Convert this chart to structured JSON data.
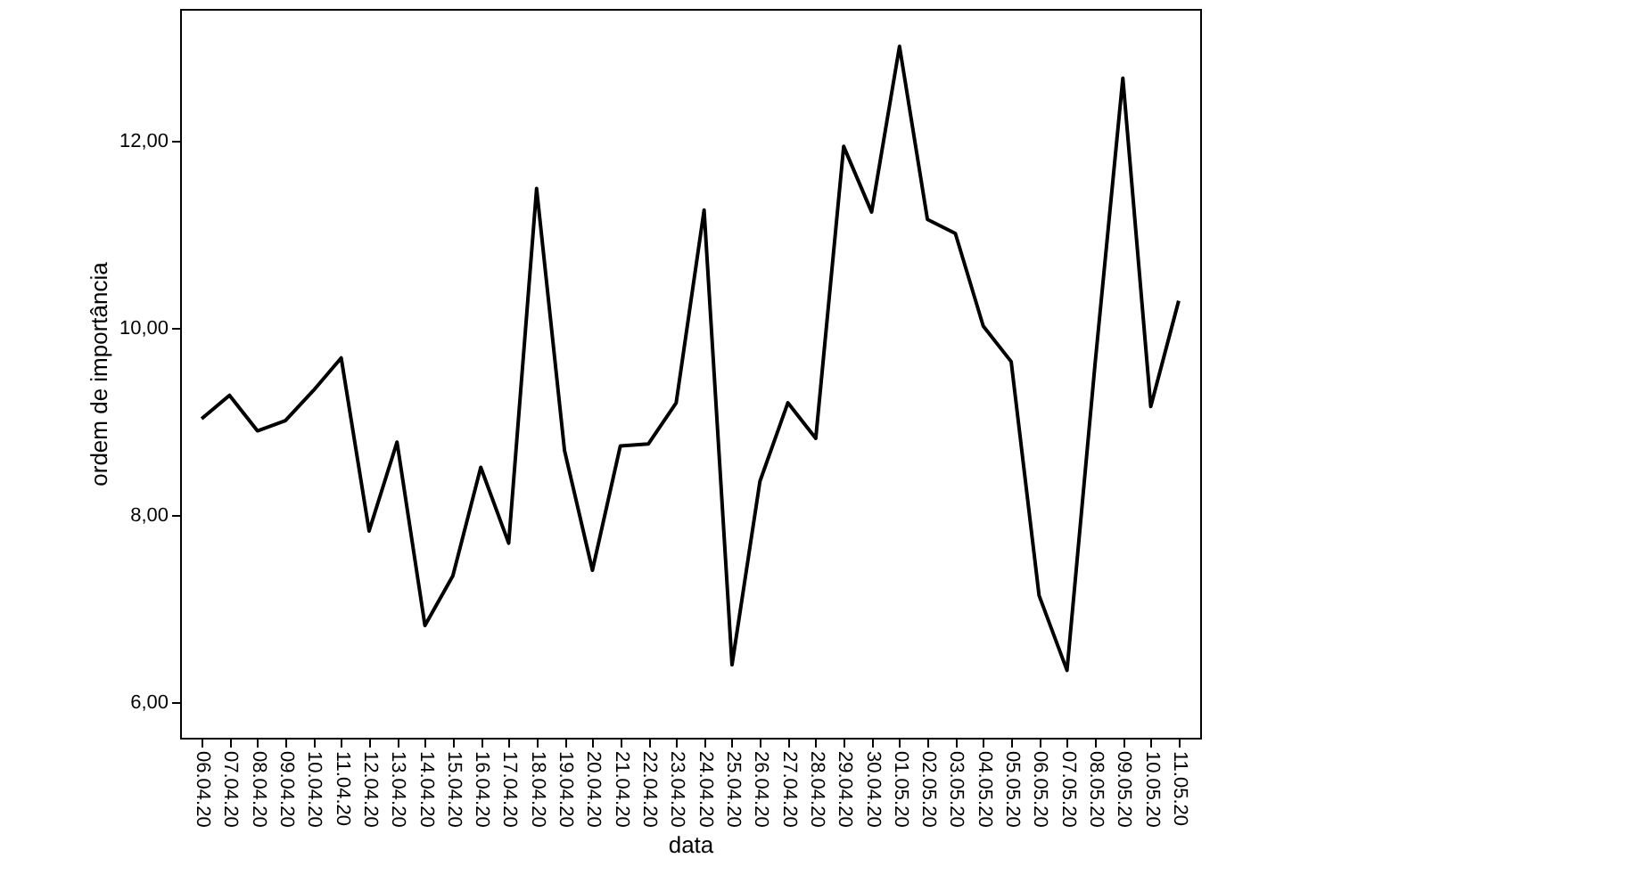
{
  "chart_data": {
    "type": "line",
    "xlabel": "data",
    "ylabel": "ordem de importância",
    "categories": [
      "06.04.20",
      "07.04.20",
      "08.04.20",
      "09.04.20",
      "10.04.20",
      "11.04.20",
      "12.04.20",
      "13.04.20",
      "14.04.20",
      "15.04.20",
      "16.04.20",
      "17.04.20",
      "18.04.20",
      "19.04.20",
      "20.04.20",
      "21.04.20",
      "22.04.20",
      "23.04.20",
      "24.04.20",
      "25.04.20",
      "26.04.20",
      "27.04.20",
      "28.04.20",
      "29.04.20",
      "30.04.20",
      "01.05.20",
      "02.05.20",
      "03.05.20",
      "04.05.20",
      "05.05.20",
      "06.05.20",
      "07.05.20",
      "08.05.20",
      "09.05.20",
      "10.05.20",
      "11.05.20"
    ],
    "series": [
      {
        "color": "#000000",
        "values": [
          9.03,
          9.28,
          8.9,
          9.01,
          9.33,
          9.68,
          7.83,
          8.78,
          6.82,
          7.35,
          8.51,
          7.7,
          11.49,
          8.69,
          7.41,
          8.74,
          8.76,
          9.2,
          11.26,
          6.4,
          8.36,
          9.2,
          8.82,
          11.94,
          11.24,
          13.01,
          11.16,
          11.01,
          10.02,
          9.64,
          7.14,
          6.34,
          9.6,
          12.67,
          9.16,
          10.29
        ]
      }
    ],
    "ylim": [
      5.62,
      13.41
    ],
    "yticks": [
      {
        "value": 6,
        "label": "6,00"
      },
      {
        "value": 8,
        "label": "8,00"
      },
      {
        "value": 10,
        "label": "10,00"
      },
      {
        "value": 12,
        "label": "12,00"
      }
    ],
    "grid": false,
    "marker": "none",
    "line_style": "solid"
  }
}
